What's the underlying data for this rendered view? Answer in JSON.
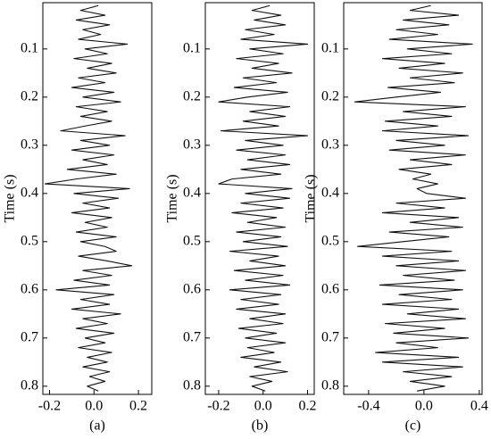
{
  "chart_data": [
    {
      "type": "line",
      "caption": "(a)",
      "ylabel": "Time (s)",
      "xlim": [
        -0.23,
        0.26
      ],
      "xticks": [
        -0.2,
        {
          "value": 0,
          "label": "0.0"
        },
        0.2
      ],
      "ylim": [
        0.004,
        0.817
      ],
      "yticks": [
        0.1,
        0.2,
        0.3,
        0.4,
        0.5,
        0.6,
        0.7,
        0.8
      ],
      "y_inverted": true,
      "color": "#111111",
      "y": [
        0.01,
        0.02,
        0.03,
        0.04,
        0.05,
        0.06,
        0.07,
        0.08,
        0.09,
        0.1,
        0.11,
        0.12,
        0.13,
        0.14,
        0.15,
        0.16,
        0.17,
        0.18,
        0.19,
        0.2,
        0.21,
        0.22,
        0.23,
        0.24,
        0.25,
        0.26,
        0.27,
        0.28,
        0.29,
        0.3,
        0.31,
        0.32,
        0.33,
        0.34,
        0.35,
        0.36,
        0.37,
        0.38,
        0.39,
        0.4,
        0.41,
        0.42,
        0.43,
        0.44,
        0.45,
        0.46,
        0.47,
        0.48,
        0.49,
        0.5,
        0.51,
        0.52,
        0.53,
        0.54,
        0.55,
        0.56,
        0.57,
        0.58,
        0.59,
        0.6,
        0.61,
        0.62,
        0.63,
        0.64,
        0.65,
        0.66,
        0.67,
        0.68,
        0.69,
        0.7,
        0.71,
        0.72,
        0.73,
        0.74,
        0.75,
        0.76,
        0.77,
        0.78,
        0.79,
        0.8,
        0.81
      ],
      "values": [
        0.02,
        -0.06,
        0.05,
        -0.08,
        0.07,
        -0.05,
        0.03,
        -0.07,
        0.15,
        -0.04,
        0.06,
        -0.09,
        0.08,
        -0.03,
        0.1,
        -0.07,
        0.05,
        -0.1,
        0.09,
        -0.05,
        0.12,
        -0.08,
        0.06,
        -0.06,
        0.08,
        -0.04,
        -0.15,
        0.14,
        -0.06,
        0.07,
        -0.1,
        0.09,
        -0.05,
        0.06,
        -0.12,
        0.1,
        -0.08,
        -0.22,
        0.16,
        -0.09,
        0.11,
        -0.05,
        0.07,
        -0.1,
        0.08,
        -0.04,
        0.06,
        -0.08,
        0.1,
        -0.06,
        0.05,
        0.1,
        -0.07,
        0.06,
        0.17,
        -0.05,
        0.08,
        -0.09,
        0.07,
        -0.17,
        0.09,
        -0.06,
        0.07,
        -0.1,
        0.12,
        -0.05,
        0.06,
        -0.08,
        0.09,
        -0.04,
        0.05,
        -0.07,
        0.08,
        -0.03,
        0.06,
        -0.05,
        0.07,
        -0.02,
        0.05,
        -0.03,
        0.02
      ]
    },
    {
      "type": "line",
      "caption": "(b)",
      "ylabel": "Time (s)",
      "xlim": [
        -0.26,
        0.23
      ],
      "xticks": [
        -0.2,
        {
          "value": 0,
          "label": "0.0"
        },
        0.2
      ],
      "ylim": [
        0.004,
        0.817
      ],
      "yticks": [
        0.1,
        0.2,
        0.3,
        0.4,
        0.5,
        0.6,
        0.7,
        0.8
      ],
      "y_inverted": true,
      "color": "#111111",
      "y": [
        0.01,
        0.02,
        0.03,
        0.04,
        0.05,
        0.06,
        0.07,
        0.08,
        0.09,
        0.1,
        0.11,
        0.12,
        0.13,
        0.14,
        0.15,
        0.16,
        0.17,
        0.18,
        0.19,
        0.2,
        0.21,
        0.22,
        0.23,
        0.24,
        0.25,
        0.26,
        0.27,
        0.28,
        0.29,
        0.3,
        0.31,
        0.32,
        0.33,
        0.34,
        0.35,
        0.36,
        0.37,
        0.38,
        0.39,
        0.4,
        0.41,
        0.42,
        0.43,
        0.44,
        0.45,
        0.46,
        0.47,
        0.48,
        0.49,
        0.5,
        0.51,
        0.52,
        0.53,
        0.54,
        0.55,
        0.56,
        0.57,
        0.58,
        0.59,
        0.6,
        0.61,
        0.62,
        0.63,
        0.64,
        0.65,
        0.66,
        0.67,
        0.68,
        0.69,
        0.7,
        0.71,
        0.72,
        0.73,
        0.74,
        0.75,
        0.76,
        0.77,
        0.78,
        0.79,
        0.8,
        0.81
      ],
      "values": [
        0.03,
        -0.05,
        0.08,
        -0.04,
        0.1,
        -0.08,
        0.05,
        -0.1,
        0.2,
        -0.06,
        0.09,
        -0.12,
        0.07,
        -0.05,
        0.13,
        -0.09,
        0.06,
        -0.13,
        0.11,
        -0.07,
        -0.2,
        0.12,
        -0.06,
        0.1,
        -0.09,
        0.07,
        -0.19,
        0.2,
        -0.08,
        0.09,
        -0.12,
        0.1,
        -0.07,
        0.12,
        -0.1,
        0.08,
        -0.14,
        -0.2,
        0.13,
        -0.08,
        0.12,
        -0.1,
        0.09,
        -0.14,
        0.06,
        -0.07,
        0.1,
        -0.12,
        0.08,
        -0.09,
        0.11,
        -0.15,
        0.07,
        -0.06,
        0.1,
        -0.13,
        0.09,
        -0.08,
        0.12,
        -0.15,
        0.08,
        -0.1,
        0.07,
        -0.12,
        0.1,
        -0.06,
        0.09,
        -0.11,
        0.06,
        -0.08,
        0.1,
        -0.07,
        0.05,
        -0.1,
        0.08,
        -0.04,
        0.11,
        -0.06,
        0.04,
        -0.05,
        0.01
      ]
    },
    {
      "type": "line",
      "caption": "(c)",
      "ylabel": "Time (s)",
      "xlim": [
        -0.58,
        0.42
      ],
      "xticks": [
        -0.4,
        {
          "value": 0,
          "label": "0.0"
        },
        0.4
      ],
      "ylim": [
        0.004,
        0.817
      ],
      "yticks": [
        0.1,
        0.2,
        0.3,
        0.4,
        0.5,
        0.6,
        0.7,
        0.8
      ],
      "y_inverted": true,
      "color": "#111111",
      "y": [
        0.01,
        0.02,
        0.03,
        0.04,
        0.05,
        0.06,
        0.07,
        0.08,
        0.09,
        0.1,
        0.11,
        0.12,
        0.13,
        0.14,
        0.15,
        0.16,
        0.17,
        0.18,
        0.19,
        0.2,
        0.21,
        0.22,
        0.23,
        0.24,
        0.25,
        0.26,
        0.27,
        0.28,
        0.29,
        0.3,
        0.31,
        0.32,
        0.33,
        0.34,
        0.35,
        0.36,
        0.37,
        0.38,
        0.39,
        0.4,
        0.41,
        0.42,
        0.43,
        0.44,
        0.45,
        0.46,
        0.47,
        0.48,
        0.49,
        0.5,
        0.51,
        0.52,
        0.53,
        0.54,
        0.55,
        0.56,
        0.57,
        0.58,
        0.59,
        0.6,
        0.61,
        0.62,
        0.63,
        0.64,
        0.65,
        0.66,
        0.67,
        0.68,
        0.69,
        0.7,
        0.71,
        0.72,
        0.73,
        0.74,
        0.75,
        0.76,
        0.77,
        0.78,
        0.79,
        0.8,
        0.81
      ],
      "values": [
        0.05,
        -0.1,
        0.25,
        -0.15,
        0.18,
        -0.2,
        0.1,
        -0.25,
        0.35,
        -0.12,
        0.2,
        -0.3,
        0.15,
        -0.18,
        0.28,
        -0.1,
        0.22,
        -0.26,
        0.12,
        -0.2,
        -0.5,
        0.3,
        -0.15,
        0.2,
        -0.28,
        0.1,
        -0.3,
        0.32,
        -0.2,
        0.15,
        -0.25,
        0.3,
        -0.1,
        0.2,
        -0.18,
        0.05,
        -0.08,
        0.1,
        -0.05,
        0.02,
        0.3,
        -0.2,
        0.15,
        -0.3,
        0.25,
        -0.1,
        0.28,
        -0.25,
        0.18,
        -0.15,
        -0.48,
        0.2,
        -0.3,
        0.25,
        -0.2,
        0.3,
        -0.15,
        0.22,
        -0.32,
        0.28,
        -0.18,
        0.2,
        -0.3,
        0.25,
        -0.12,
        0.3,
        -0.28,
        0.15,
        -0.22,
        0.32,
        -0.2,
        0.1,
        -0.35,
        0.25,
        -0.3,
        0.28,
        -0.15,
        0.2,
        -0.1,
        0.15,
        -0.05
      ]
    }
  ]
}
